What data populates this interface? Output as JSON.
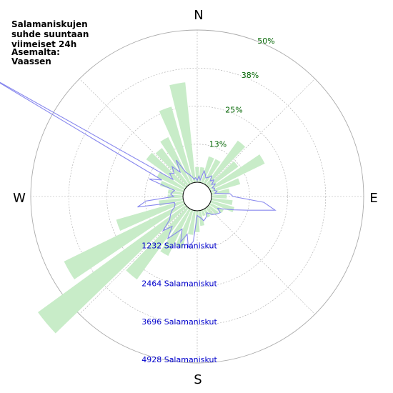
{
  "chart_data": {
    "type": "polar",
    "title_lines": [
      "Salamaniskujen",
      "suhde suuntaan",
      "viimeiset 24h",
      "Asemalta:",
      "Vaassen"
    ],
    "directions": {
      "north": "N",
      "east": "E",
      "south": "S",
      "west": "W"
    },
    "percent_rings": [
      "13%",
      "25%",
      "38%",
      "50%"
    ],
    "percent_ring_values": [
      12.5,
      25,
      37.5,
      50
    ],
    "count_rings": [
      "1232 Salamaniskut",
      "2464 Salamaniskut",
      "3696 Salamaniskut",
      "4928 Salamaniskut"
    ],
    "count_ring_values": [
      1232,
      2464,
      3696,
      4928
    ],
    "grid": true,
    "percent_series": {
      "name": "",
      "color": "#c8ecc8",
      "sector_width_deg": 10,
      "bearings_deg": [
        0,
        10,
        20,
        30,
        40,
        50,
        60,
        70,
        80,
        90,
        100,
        110,
        120,
        130,
        140,
        150,
        160,
        170,
        180,
        190,
        200,
        210,
        220,
        230,
        240,
        250,
        260,
        270,
        280,
        290,
        300,
        310,
        320,
        330,
        340,
        350
      ],
      "values": [
        5,
        5,
        9,
        9,
        18,
        12,
        20,
        10,
        6,
        5,
        7,
        8,
        5,
        4,
        3,
        3,
        2,
        5,
        7,
        8,
        13,
        17,
        29,
        60,
        44,
        23,
        8,
        5,
        5,
        8,
        10,
        16,
        15,
        17,
        26,
        33
      ]
    },
    "count_series": {
      "name": "",
      "color": "#8888ee",
      "bearings_deg": [
        0,
        5,
        10,
        15,
        20,
        25,
        30,
        35,
        40,
        45,
        50,
        55,
        60,
        65,
        70,
        75,
        80,
        85,
        90,
        95,
        100,
        105,
        110,
        115,
        120,
        125,
        130,
        135,
        140,
        145,
        150,
        155,
        160,
        165,
        170,
        175,
        180,
        185,
        190,
        195,
        200,
        205,
        210,
        215,
        220,
        225,
        230,
        235,
        240,
        245,
        250,
        255,
        260,
        265,
        270,
        275,
        280,
        285,
        290,
        295,
        300,
        305,
        310,
        315,
        320,
        325,
        330,
        335,
        340,
        345,
        350,
        355
      ],
      "values": [
        60,
        200,
        80,
        400,
        300,
        200,
        250,
        350,
        200,
        300,
        150,
        250,
        100,
        160,
        120,
        200,
        120,
        600,
        700,
        1700,
        2100,
        1250,
        800,
        500,
        300,
        450,
        400,
        350,
        300,
        200,
        150,
        250,
        300,
        350,
        250,
        200,
        150,
        1000,
        1200,
        800,
        1100,
        700,
        900,
        1200,
        800,
        1100,
        700,
        600,
        500,
        350,
        300,
        300,
        1500,
        1200,
        300,
        400,
        350,
        300,
        1200,
        800,
        7600,
        500,
        700,
        600,
        800,
        500,
        900,
        400,
        300,
        200,
        100,
        150
      ]
    }
  }
}
